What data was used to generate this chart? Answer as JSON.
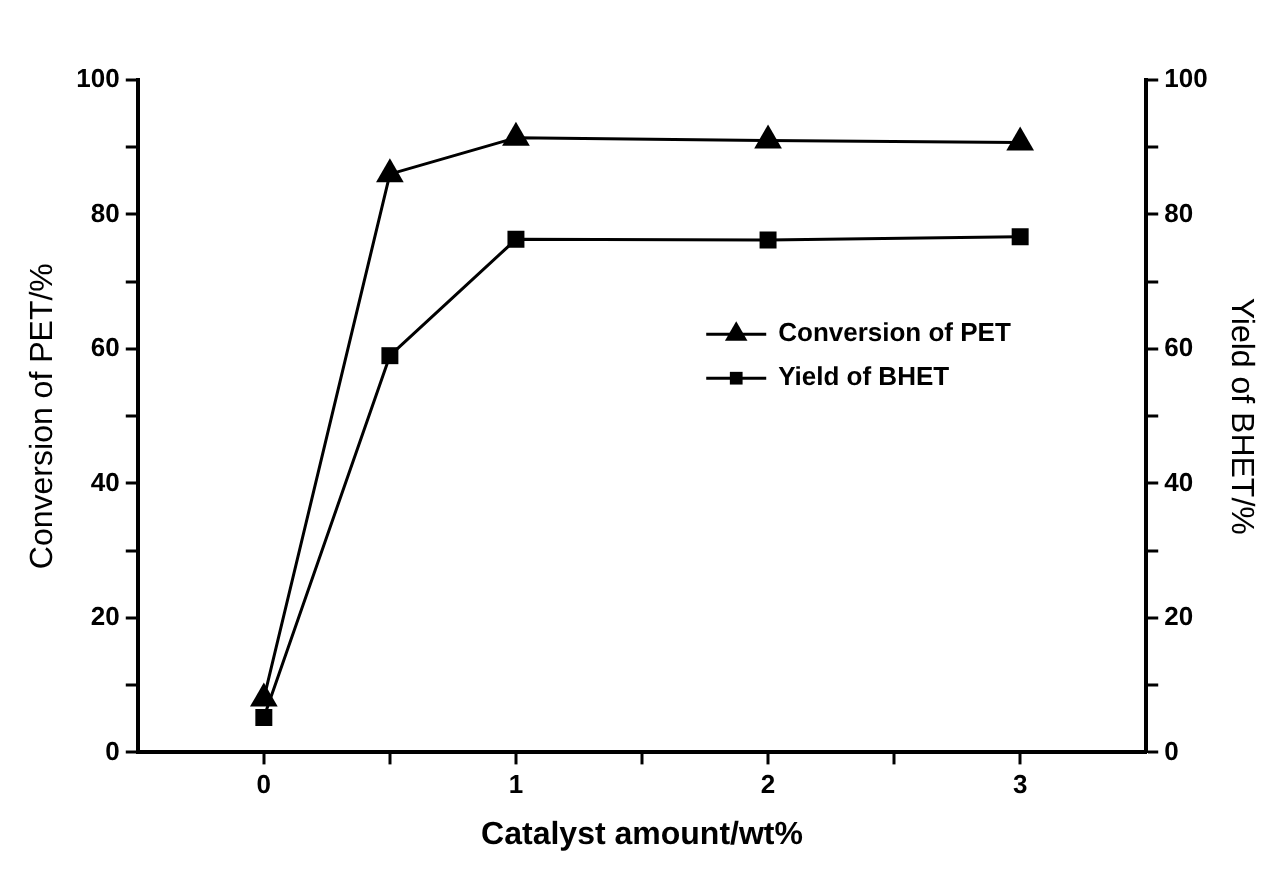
{
  "chart_data": {
    "type": "line",
    "xlabel": "Catalyst amount/wt%",
    "ylabel": "Conversion of PET/%",
    "y2label": "Yield of BHET/%",
    "x": [
      0,
      0.5,
      1,
      2,
      3
    ],
    "series": [
      {
        "name": "Conversion of PET",
        "color": "#000000",
        "marker": "triangle",
        "values": [
          8,
          86,
          91.4,
          91,
          90.7
        ]
      },
      {
        "name": "Yield of BHET",
        "color": "#000000",
        "marker": "square",
        "values": [
          5.2,
          59,
          76.3,
          76.2,
          76.7
        ]
      }
    ],
    "xlim": [
      -0.5,
      3.5
    ],
    "xticks": [
      0,
      {
        "value": 0.5,
        "label": null
      },
      1,
      {
        "value": 1.5,
        "label": null
      },
      2,
      {
        "value": 2.5,
        "label": null
      },
      3
    ],
    "ylim": [
      0,
      100
    ],
    "yticks": [
      0,
      {
        "value": 10,
        "label": null
      },
      20,
      {
        "value": 30,
        "label": null
      },
      40,
      {
        "value": 50,
        "label": null
      },
      60,
      {
        "value": 70,
        "label": null
      },
      80,
      {
        "value": 90,
        "label": null
      },
      100
    ],
    "y2lim": [
      0,
      100
    ],
    "y2ticks": [
      0,
      {
        "value": 10,
        "label": null
      },
      20,
      {
        "value": 30,
        "label": null
      },
      40,
      {
        "value": 50,
        "label": null
      },
      60,
      {
        "value": 70,
        "label": null
      },
      80,
      {
        "value": 90,
        "label": null
      },
      100
    ],
    "legend": "right",
    "grid": false,
    "line_style": "solid"
  }
}
